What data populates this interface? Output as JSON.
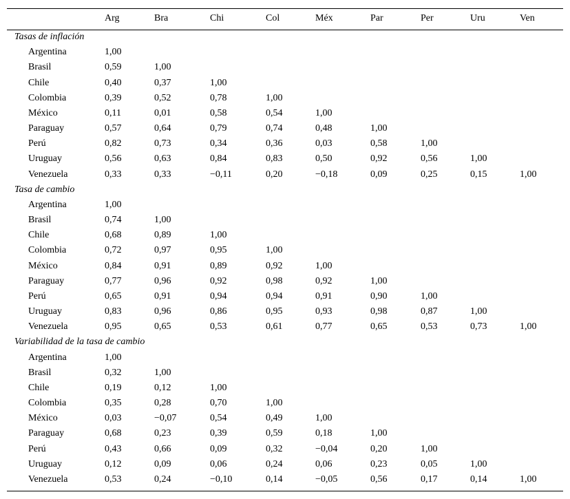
{
  "table": {
    "header": [
      "Arg",
      "Bra",
      "Chi",
      "Col",
      "Méx",
      "Par",
      "Per",
      "Uru",
      "Ven"
    ],
    "sections": [
      {
        "title": "Tasas de inflación",
        "rows": [
          {
            "label": "Argentina",
            "values": [
              "1,00"
            ]
          },
          {
            "label": "Brasil",
            "values": [
              "0,59",
              "1,00"
            ]
          },
          {
            "label": "Chile",
            "values": [
              "0,40",
              "0,37",
              "1,00"
            ]
          },
          {
            "label": "Colombia",
            "values": [
              "0,39",
              "0,52",
              "0,78",
              "1,00"
            ]
          },
          {
            "label": "México",
            "values": [
              "0,11",
              "0,01",
              "0,58",
              "0,54",
              "1,00"
            ]
          },
          {
            "label": "Paraguay",
            "values": [
              "0,57",
              "0,64",
              "0,79",
              "0,74",
              "0,48",
              "1,00"
            ]
          },
          {
            "label": "Perú",
            "values": [
              "0,82",
              "0,73",
              "0,34",
              "0,36",
              "0,03",
              "0,58",
              "1,00"
            ]
          },
          {
            "label": "Uruguay",
            "values": [
              "0,56",
              "0,63",
              "0,84",
              "0,83",
              "0,50",
              "0,92",
              "0,56",
              "1,00"
            ]
          },
          {
            "label": "Venezuela",
            "values": [
              "0,33",
              "0,33",
              "−0,11",
              "0,20",
              "−0,18",
              "0,09",
              "0,25",
              "0,15",
              "1,00"
            ]
          }
        ]
      },
      {
        "title": "Tasa de cambio",
        "rows": [
          {
            "label": "Argentina",
            "values": [
              "1,00"
            ]
          },
          {
            "label": "Brasil",
            "values": [
              "0,74",
              "1,00"
            ]
          },
          {
            "label": "Chile",
            "values": [
              "0,68",
              "0,89",
              "1,00"
            ]
          },
          {
            "label": "Colombia",
            "values": [
              "0,72",
              "0,97",
              "0,95",
              "1,00"
            ]
          },
          {
            "label": "México",
            "values": [
              "0,84",
              "0,91",
              "0,89",
              "0,92",
              "1,00"
            ]
          },
          {
            "label": "Paraguay",
            "values": [
              "0,77",
              "0,96",
              "0,92",
              "0,98",
              "0,92",
              "1,00"
            ]
          },
          {
            "label": "Perú",
            "values": [
              "0,65",
              "0,91",
              "0,94",
              "0,94",
              "0,91",
              "0,90",
              "1,00"
            ]
          },
          {
            "label": "Uruguay",
            "values": [
              "0,83",
              "0,96",
              "0,86",
              "0,95",
              "0,93",
              "0,98",
              "0,87",
              "1,00"
            ]
          },
          {
            "label": "Venezuela",
            "values": [
              "0,95",
              "0,65",
              "0,53",
              "0,61",
              "0,77",
              "0,65",
              "0,53",
              "0,73",
              "1,00"
            ]
          }
        ]
      },
      {
        "title": "Variabilidad de la tasa de cambio",
        "rows": [
          {
            "label": "Argentina",
            "values": [
              "1,00"
            ]
          },
          {
            "label": "Brasil",
            "values": [
              "0,32",
              "1,00"
            ]
          },
          {
            "label": "Chile",
            "values": [
              "0,19",
              "0,12",
              "1,00"
            ]
          },
          {
            "label": "Colombia",
            "values": [
              "0,35",
              "0,28",
              "0,70",
              "1,00"
            ]
          },
          {
            "label": "México",
            "values": [
              "0,03",
              "−0,07",
              "0,54",
              "0,49",
              "1,00"
            ]
          },
          {
            "label": "Paraguay",
            "values": [
              "0,68",
              "0,23",
              "0,39",
              "0,59",
              "0,18",
              "1,00"
            ]
          },
          {
            "label": "Perú",
            "values": [
              "0,43",
              "0,66",
              "0,09",
              "0,32",
              "−0,04",
              "0,20",
              "1,00"
            ]
          },
          {
            "label": "Uruguay",
            "values": [
              "0,12",
              "0,09",
              "0,06",
              "0,24",
              "0,06",
              "0,23",
              "0,05",
              "1,00"
            ]
          },
          {
            "label": "Venezuela",
            "values": [
              "0,53",
              "0,24",
              "−0,10",
              "0,14",
              "−0,05",
              "0,56",
              "0,17",
              "0,14",
              "1,00"
            ]
          }
        ]
      }
    ]
  }
}
